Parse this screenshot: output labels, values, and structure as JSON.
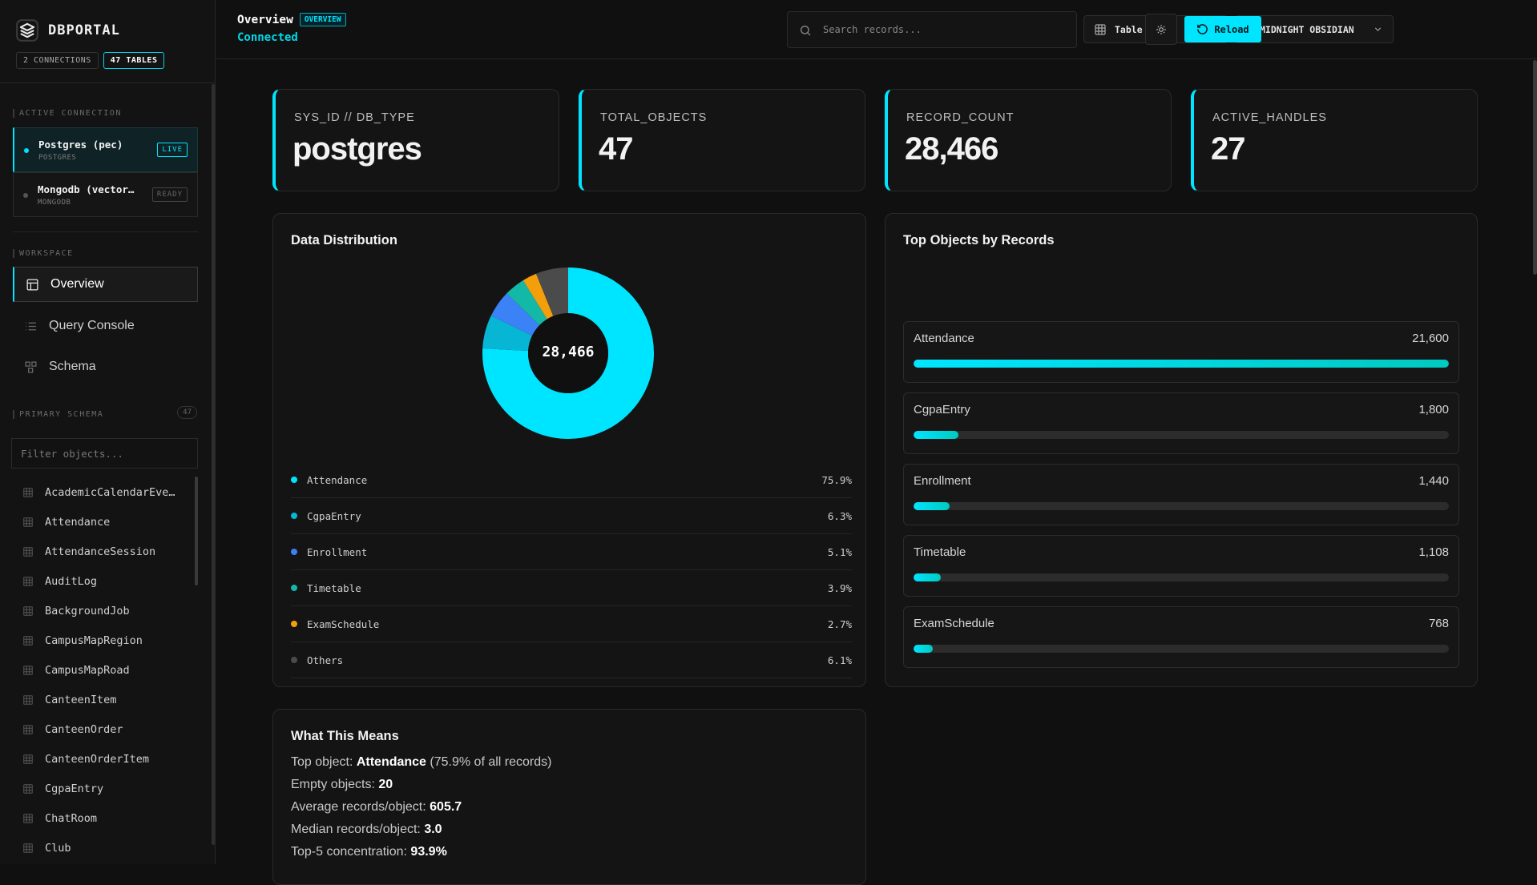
{
  "app": {
    "brand": "DBPORTAL",
    "connections_pill": "2 CONNECTIONS",
    "tables_pill": "47 TABLES"
  },
  "sidebar": {
    "active_connection_label": "ACTIVE CONNECTION",
    "connections": [
      {
        "name": "Postgres (pec)",
        "type": "POSTGRES",
        "badge": "LIVE"
      },
      {
        "name": "Mongodb (vector…",
        "type": "MONGODB",
        "badge": "READY"
      }
    ],
    "workspace_label": "WORKSPACE",
    "nav": [
      {
        "label": "Overview",
        "icon": "layout-icon"
      },
      {
        "label": "Query Console",
        "icon": "list-icon"
      },
      {
        "label": "Schema",
        "icon": "schema-icon"
      }
    ],
    "primary_schema_label": "PRIMARY SCHEMA",
    "schema_count": "47",
    "filter_placeholder": "Filter objects...",
    "tables": [
      "AcademicCalendarEve…",
      "Attendance",
      "AttendanceSession",
      "AuditLog",
      "BackgroundJob",
      "CampusMapRegion",
      "CampusMapRoad",
      "CanteenItem",
      "CanteenOrder",
      "CanteenOrderItem",
      "CgpaEntry",
      "ChatRoom",
      "Club"
    ]
  },
  "header": {
    "title": "Overview",
    "tag": "OVERVIEW",
    "status": "Connected",
    "search_placeholder": "Search records...",
    "view_label": "Table View",
    "theme_label": "MIDNIGHT OBSIDIAN",
    "reload_label": "Reload"
  },
  "stats": [
    {
      "label": "SYS_ID // DB_TYPE",
      "value": "postgres"
    },
    {
      "label": "TOTAL_OBJECTS",
      "value": "47"
    },
    {
      "label": "RECORD_COUNT",
      "value": "28,466"
    },
    {
      "label": "ACTIVE_HANDLES",
      "value": "27"
    }
  ],
  "distribution": {
    "title": "Data Distribution",
    "center_label": "28,466",
    "slices": [
      {
        "name": "Attendance",
        "value": 75.9,
        "pct": "75.9%",
        "color": "#00e5ff"
      },
      {
        "name": "CgpaEntry",
        "value": 6.3,
        "pct": "6.3%",
        "color": "#06b6d4"
      },
      {
        "name": "Enrollment",
        "value": 5.1,
        "pct": "5.1%",
        "color": "#3b82f6"
      },
      {
        "name": "Timetable",
        "value": 3.9,
        "pct": "3.9%",
        "color": "#14b8a6"
      },
      {
        "name": "ExamSchedule",
        "value": 2.7,
        "pct": "2.7%",
        "color": "#f59e0b"
      },
      {
        "name": "Others",
        "value": 6.1,
        "pct": "6.1%",
        "color": "#4b4b4b"
      }
    ]
  },
  "top_objects": {
    "title": "Top Objects by Records",
    "items": [
      {
        "name": "Attendance",
        "value_label": "21,600",
        "value": 21600
      },
      {
        "name": "CgpaEntry",
        "value_label": "1,800",
        "value": 1800
      },
      {
        "name": "Enrollment",
        "value_label": "1,440",
        "value": 1440
      },
      {
        "name": "Timetable",
        "value_label": "1,108",
        "value": 1108
      },
      {
        "name": "ExamSchedule",
        "value_label": "768",
        "value": 768
      }
    ]
  },
  "means": {
    "title": "What This Means",
    "top_prefix": "Top object: ",
    "top_name": "Attendance",
    "top_suffix": " (75.9% of all records)",
    "empty_prefix": "Empty objects: ",
    "empty_value": "20",
    "avg_prefix": "Average records/object: ",
    "avg_value": "605.7",
    "median_prefix": "Median records/object: ",
    "median_value": "3.0",
    "top5_prefix": "Top-5 concentration: ",
    "top5_value": "93.9%"
  }
}
